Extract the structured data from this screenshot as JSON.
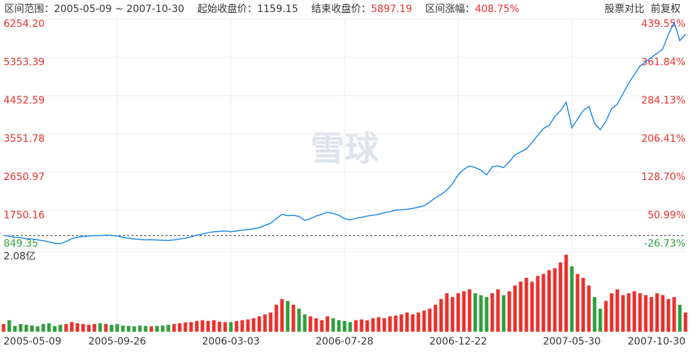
{
  "chart_data": {
    "type": "line",
    "range_label": "区间范围：",
    "range_sep": "~",
    "start_close_label": "起始收盘价：",
    "start_close": 1159.15,
    "end_close_label": "结束收盘价：",
    "end_close": 5897.19,
    "change_label": "区间涨幅：",
    "change": 408.75,
    "change_value_label": "408.75%",
    "compare": "股票对比",
    "adjust": "前复权",
    "watermark": "雪球",
    "categories": [
      "2005-05-09",
      null,
      null,
      null,
      null,
      null,
      null,
      null,
      null,
      null,
      null,
      null,
      null,
      null,
      null,
      null,
      null,
      null,
      null,
      null,
      "2005-09-26",
      null,
      null,
      null,
      null,
      null,
      null,
      null,
      null,
      null,
      null,
      null,
      null,
      null,
      null,
      null,
      null,
      null,
      null,
      null,
      "2006-03-03",
      null,
      null,
      null,
      null,
      null,
      null,
      null,
      null,
      null,
      null,
      null,
      null,
      null,
      null,
      null,
      null,
      null,
      null,
      null,
      "2006-07-28",
      null,
      null,
      null,
      null,
      null,
      null,
      null,
      null,
      null,
      null,
      null,
      null,
      null,
      null,
      null,
      null,
      null,
      null,
      null,
      "2006-12-22",
      null,
      null,
      null,
      null,
      null,
      null,
      null,
      null,
      null,
      null,
      null,
      null,
      null,
      null,
      null,
      null,
      null,
      null,
      null,
      "2007-05-30",
      null,
      null,
      null,
      null,
      null,
      null,
      null,
      null,
      null,
      null,
      null,
      null,
      null,
      null,
      null,
      null,
      null,
      null,
      null,
      "2007-10-30"
    ],
    "series": [
      {
        "color": "#1e88e5",
        "values": [
          1159,
          1150,
          1120,
          1110,
          1090,
          1080,
          1060,
          1040,
          1010,
          980,
          970,
          1020,
          1090,
          1120,
          1140,
          1150,
          1160,
          1155,
          1170,
          1165,
          1150,
          1120,
          1100,
          1080,
          1070,
          1060,
          1065,
          1055,
          1050,
          1045,
          1060,
          1080,
          1100,
          1130,
          1170,
          1200,
          1230,
          1250,
          1260,
          1270,
          1250,
          1270,
          1290,
          1300,
          1320,
          1350,
          1400,
          1450,
          1560,
          1660,
          1630,
          1640,
          1610,
          1520,
          1560,
          1620,
          1660,
          1710,
          1680,
          1640,
          1560,
          1530,
          1570,
          1590,
          1620,
          1640,
          1660,
          1700,
          1720,
          1760,
          1770,
          1780,
          1800,
          1830,
          1860,
          1950,
          2050,
          2130,
          2230,
          2380,
          2590,
          2720,
          2800,
          2760,
          2700,
          2590,
          2780,
          2800,
          2760,
          2900,
          3060,
          3130,
          3200,
          3350,
          3520,
          3680,
          3750,
          3960,
          4100,
          4300,
          3700,
          3900,
          4100,
          4200,
          3800,
          3650,
          3850,
          4150,
          4250,
          4500,
          4750,
          4950,
          5150,
          5250,
          5350,
          5450,
          5550,
          5900,
          6180,
          5750,
          5897.19
        ]
      }
    ],
    "ylim": [
      849.35,
      6254.2
    ],
    "yticks": [
      {
        "value": 6254.2,
        "label": "6254.20"
      },
      5353.39,
      4452.59,
      3551.78,
      2650.97,
      1750.16,
      849.35
    ],
    "y2lim": [
      -26.73,
      439.55
    ],
    "y2ticks": [
      {
        "value": 439.55,
        "label": "439.55%"
      },
      {
        "value": 361.84,
        "label": "361.84%"
      },
      {
        "value": 284.13,
        "label": "284.13%"
      },
      {
        "value": 206.41,
        "label": "206.41%"
      },
      {
        "value": 128.7,
        "label": "128.70%"
      },
      {
        "value": 50.99,
        "label": "50.99%"
      },
      {
        "value": -26.73,
        "label": "-26.73%"
      }
    ],
    "grid": true,
    "up_color": "#e8312d",
    "down_color": "#2e9e3c",
    "volume": {
      "values": [
        0.2,
        0.3,
        0.15,
        0.2,
        0.18,
        0.16,
        0.14,
        0.2,
        0.22,
        0.15,
        0.18,
        0.2,
        0.25,
        0.22,
        0.2,
        0.18,
        0.2,
        0.22,
        0.2,
        0.18,
        0.2,
        0.16,
        0.15,
        0.14,
        0.16,
        0.15,
        0.14,
        0.15,
        0.16,
        0.18,
        0.2,
        0.22,
        0.24,
        0.25,
        0.28,
        0.3,
        0.28,
        0.3,
        0.26,
        0.25,
        0.25,
        0.28,
        0.3,
        0.32,
        0.35,
        0.4,
        0.45,
        0.5,
        0.7,
        0.85,
        0.8,
        0.7,
        0.6,
        0.45,
        0.4,
        0.35,
        0.3,
        0.4,
        0.35,
        0.3,
        0.28,
        0.25,
        0.3,
        0.32,
        0.3,
        0.35,
        0.38,
        0.35,
        0.4,
        0.42,
        0.45,
        0.5,
        0.45,
        0.5,
        0.55,
        0.6,
        0.7,
        0.85,
        1.0,
        0.9,
        1.0,
        1.05,
        1.1,
        1.0,
        0.95,
        0.9,
        1.0,
        1.1,
        0.95,
        1.05,
        1.2,
        1.3,
        1.4,
        1.3,
        1.45,
        1.5,
        1.6,
        1.65,
        1.8,
        2.0,
        1.7,
        1.5,
        1.4,
        1.2,
        0.9,
        0.6,
        0.8,
        1.0,
        1.1,
        0.95,
        1.0,
        1.05,
        1.0,
        0.95,
        0.9,
        1.0,
        0.95,
        0.85,
        0.9,
        0.7,
        0.5
      ],
      "ylim": [
        0,
        2.08
      ],
      "yticks": [
        {
          "value": 2.08,
          "label": "2.08亿"
        }
      ]
    }
  }
}
